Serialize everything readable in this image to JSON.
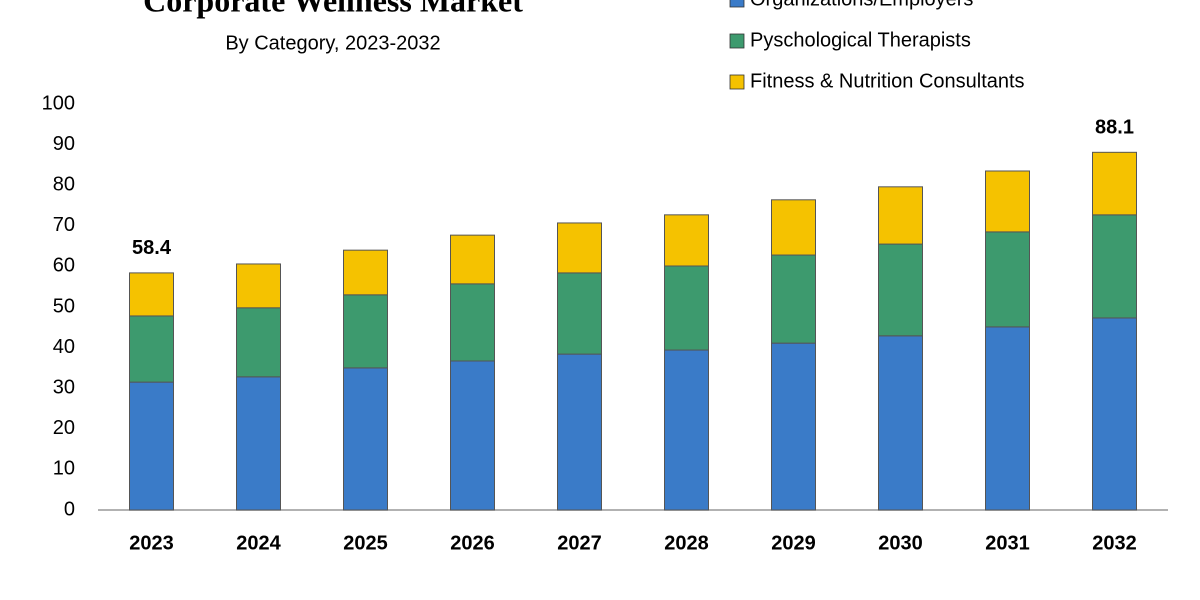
{
  "chart_data": {
    "type": "stacked_bar",
    "title": "Corporate Wellness Market",
    "subtitle": "By Category, 2023-2032",
    "categories": [
      "2023",
      "2024",
      "2025",
      "2026",
      "2027",
      "2028",
      "2029",
      "2030",
      "2031",
      "2032"
    ],
    "series": [
      {
        "name": "Organizations/Employers",
        "color": "#3a7bc8",
        "values": [
          31.5,
          32.8,
          35.0,
          36.7,
          38.4,
          39.4,
          41.1,
          42.9,
          45.1,
          47.3
        ]
      },
      {
        "name": "Pyschological Therapists",
        "color": "#3d9a6e",
        "values": [
          16.3,
          17.0,
          18.0,
          19.0,
          20.0,
          20.7,
          21.7,
          22.6,
          23.4,
          25.4
        ]
      },
      {
        "name": "Fitness & Nutrition Consultants",
        "color": "#f5c200",
        "values": [
          10.6,
          10.8,
          11.0,
          12.0,
          12.3,
          12.6,
          13.6,
          14.1,
          15.0,
          15.4
        ]
      }
    ],
    "total_labels": [
      "58.4",
      null,
      null,
      null,
      null,
      null,
      null,
      null,
      null,
      "88.1"
    ],
    "ylim": [
      0,
      100
    ],
    "yticks": [
      0,
      10,
      20,
      30,
      40,
      50,
      60,
      70,
      80,
      90,
      100
    ],
    "grid": false
  }
}
